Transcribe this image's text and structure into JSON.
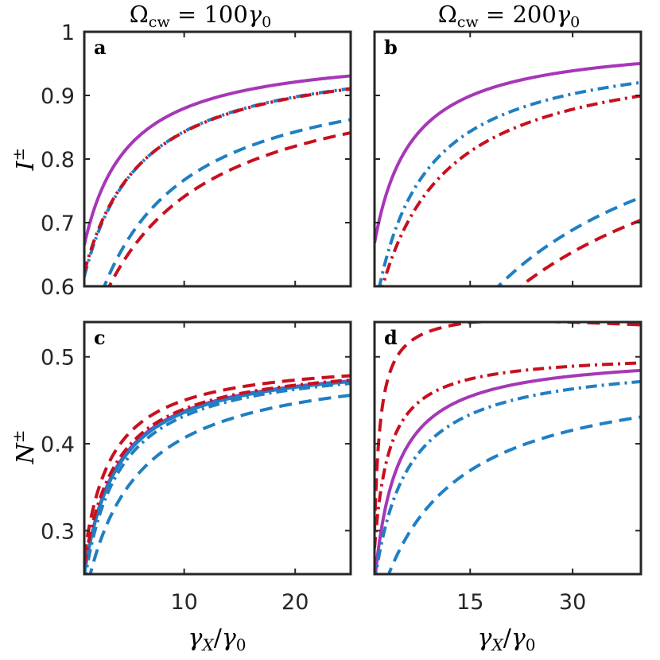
{
  "colors": {
    "purple": "#a637b7",
    "blue": "#1f7fc4",
    "red": "#c8101e",
    "axis": "#262626"
  },
  "titles": {
    "col1": {
      "base": "Ω",
      "sub": "cw",
      "rest": " = 100",
      "gamma": "γ",
      "gsub": "0"
    },
    "col2": {
      "base": "Ω",
      "sub": "cw",
      "rest": " = 200",
      "gamma": "γ",
      "gsub": "0"
    }
  },
  "xlabel": {
    "g1": "γ",
    "s1": "X",
    "mid": "/",
    "g2": "γ",
    "s2": "0"
  },
  "ylabels": {
    "top": {
      "base": "I",
      "sup": "±"
    },
    "bottom": {
      "base": "N",
      "sup": "±"
    }
  },
  "chart_data": [
    {
      "panel": "a",
      "type": "line",
      "xlim": [
        1,
        25
      ],
      "ylim": [
        0.6,
        1.0
      ],
      "xticks": [
        10,
        20
      ],
      "xticklabels": [],
      "yticks": [
        0.6,
        0.7,
        0.8,
        0.9,
        1.0
      ],
      "yticklabels": [
        "0.6",
        "0.7",
        "0.8",
        "0.9",
        "1"
      ],
      "series": [
        {
          "name": "purple-solid",
          "color": "purple",
          "style": "solid",
          "A": 0.665,
          "B": 0.975,
          "k": 4.0
        },
        {
          "name": "blue-dashdot",
          "color": "blue",
          "style": "dashdot",
          "A": 0.615,
          "B": 0.975,
          "k": 5.2
        },
        {
          "name": "red-dashdot",
          "color": "red",
          "style": "dashdot",
          "A": 0.622,
          "B": 0.975,
          "k": 5.4
        },
        {
          "name": "blue-dashed",
          "color": "blue",
          "style": "dashed",
          "A": 0.5,
          "B": 0.96,
          "k": 6.5
        },
        {
          "name": "red-dashed",
          "color": "red",
          "style": "dashed",
          "A": 0.5,
          "B": 0.955,
          "k": 8.0
        }
      ]
    },
    {
      "panel": "b",
      "type": "line",
      "xlim": [
        1,
        40
      ],
      "ylim": [
        0.6,
        1.0
      ],
      "xticks": [
        15,
        30
      ],
      "xticklabels": [],
      "yticks": [
        0.6,
        0.7,
        0.8,
        0.9,
        1.0
      ],
      "yticklabels": [],
      "series": [
        {
          "name": "purple-solid",
          "color": "purple",
          "style": "solid",
          "A": 0.668,
          "B": 0.99,
          "k": 5.5
        },
        {
          "name": "blue-dashdot",
          "color": "blue",
          "style": "dashdot",
          "A": 0.56,
          "B": 0.985,
          "k": 7.0
        },
        {
          "name": "red-dashdot",
          "color": "red",
          "style": "dashdot",
          "A": 0.55,
          "B": 0.98,
          "k": 9.0
        },
        {
          "name": "blue-dashed",
          "color": "blue",
          "style": "dashed",
          "A": 0.2,
          "B": 0.975,
          "k": 17.0
        },
        {
          "name": "red-dashed",
          "color": "red",
          "style": "dashed",
          "A": 0.25,
          "B": 0.96,
          "k": 22.0
        }
      ]
    },
    {
      "panel": "c",
      "type": "line",
      "xlim": [
        1,
        25
      ],
      "ylim": [
        0.25,
        0.54
      ],
      "xticks": [
        10,
        20
      ],
      "xticklabels": [
        "10",
        "20"
      ],
      "yticks": [
        0.3,
        0.4,
        0.5
      ],
      "yticklabels": [
        "0.3",
        "0.4",
        "0.5"
      ],
      "series": [
        {
          "name": "purple-solid",
          "color": "purple",
          "style": "solid",
          "A": 0.25,
          "B": 0.5,
          "k": 3.0
        },
        {
          "name": "blue-solid",
          "color": "blue",
          "style": "solid",
          "A": 0.25,
          "B": 0.5,
          "k": 3.1
        },
        {
          "name": "blue-dashdot",
          "color": "blue",
          "style": "dashdot",
          "A": 0.24,
          "B": 0.5,
          "k": 3.2
        },
        {
          "name": "red-dashdot",
          "color": "red",
          "style": "dashdot",
          "A": 0.26,
          "B": 0.5,
          "k": 3.0
        },
        {
          "name": "red-dashed",
          "color": "red",
          "style": "dashed",
          "A": 0.27,
          "B": 0.5,
          "k": 2.5
        },
        {
          "name": "blue-dashed",
          "color": "blue",
          "style": "dashed",
          "A": 0.22,
          "B": 0.5,
          "k": 4.5
        }
      ]
    },
    {
      "panel": "d",
      "type": "line",
      "xlim": [
        1,
        40
      ],
      "ylim": [
        0.25,
        0.54
      ],
      "xticks": [
        15,
        30
      ],
      "xticklabels": [
        "15",
        "30"
      ],
      "yticks": [
        0.3,
        0.4,
        0.5
      ],
      "yticklabels": [],
      "series": [
        {
          "name": "red-dashed",
          "color": "red",
          "style": "dashed",
          "A": 0.3,
          "B": 0.555,
          "k": 0.9,
          "dropStart": 15,
          "drop": 0.0005
        },
        {
          "name": "red-dashdot",
          "color": "red",
          "style": "dashdot",
          "A": 0.28,
          "B": 0.505,
          "k": 2.2
        },
        {
          "name": "purple-solid",
          "color": "purple",
          "style": "solid",
          "A": 0.24,
          "B": 0.505,
          "k": 3.3
        },
        {
          "name": "blue-dashdot",
          "color": "blue",
          "style": "dashdot",
          "A": 0.24,
          "B": 0.5,
          "k": 4.8
        },
        {
          "name": "blue-dashed",
          "color": "blue",
          "style": "dashed",
          "A": 0.2,
          "B": 0.49,
          "k": 10.0
        }
      ]
    }
  ]
}
